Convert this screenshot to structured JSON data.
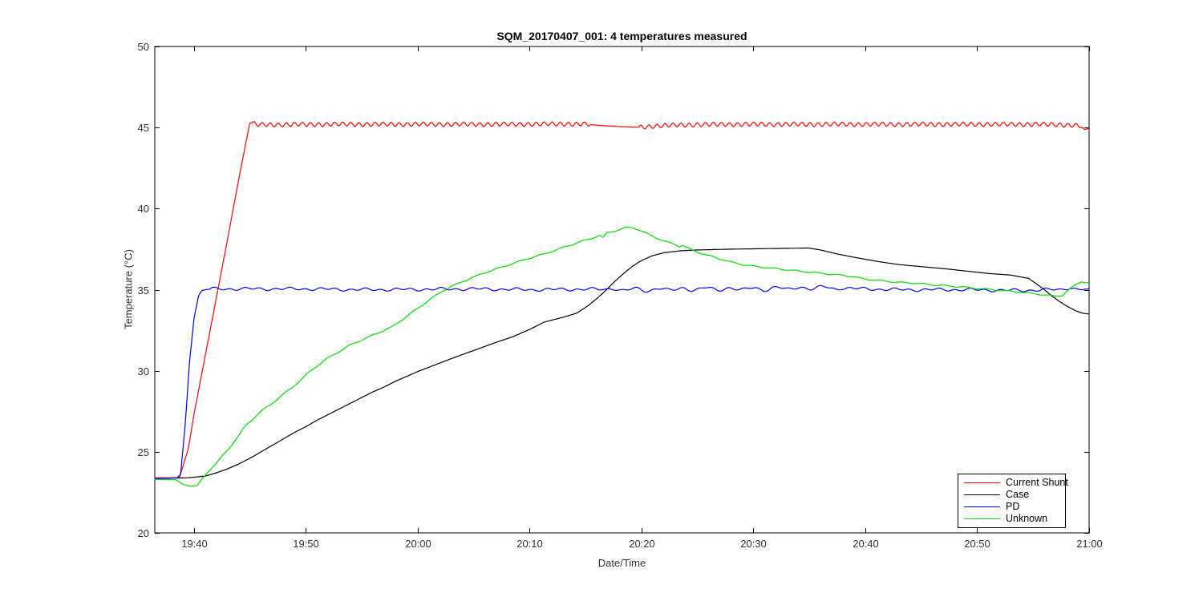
{
  "figure": {
    "background": "#ffffff"
  },
  "chart_data": {
    "type": "line",
    "title": "SQM_20170407_001: 4 temperatures measured",
    "xlabel": "Date/Time",
    "ylabel": "Temperature (°C)",
    "x_unit": "minutes relative to 19:40",
    "xlim_minutes": [
      -3.5,
      80
    ],
    "ylim": [
      20,
      50
    ],
    "grid": false,
    "axis_color": "#000000",
    "tick_label_color": "#333333",
    "x_ticks": [
      {
        "t": 0,
        "label": "19:40"
      },
      {
        "t": 10,
        "label": "19:50"
      },
      {
        "t": 20,
        "label": "20:00"
      },
      {
        "t": 30,
        "label": "20:10"
      },
      {
        "t": 40,
        "label": "20:20"
      },
      {
        "t": 50,
        "label": "20:30"
      },
      {
        "t": 60,
        "label": "20:40"
      },
      {
        "t": 70,
        "label": "20:50"
      },
      {
        "t": 80,
        "label": "21:00"
      }
    ],
    "y_ticks": [
      20,
      25,
      30,
      35,
      40,
      45,
      50
    ],
    "legend": {
      "position": "lower-right",
      "entries": [
        {
          "label": "Current Shunt",
          "color": "#ff0000"
        },
        {
          "label": "Case",
          "color": "#000000"
        },
        {
          "label": "PD",
          "color": "#0000ff"
        },
        {
          "label": "Unknown",
          "color": "#00dc00"
        }
      ]
    },
    "series": [
      {
        "name": "Current Shunt",
        "color": "#ff0000",
        "points": [
          [
            -3.5,
            23.4
          ],
          [
            -1.3,
            23.4
          ],
          [
            -0.5,
            25.2
          ],
          [
            0,
            27.3
          ],
          [
            1,
            30.9
          ],
          [
            2,
            34.5
          ],
          [
            3,
            38.1
          ],
          [
            4,
            41.8
          ],
          [
            5,
            45.32
          ],
          [
            5.6,
            45.18
          ],
          [
            8,
            45.18
          ],
          [
            12,
            45.2
          ],
          [
            16,
            45.2
          ],
          [
            20,
            45.2
          ],
          [
            24,
            45.2
          ],
          [
            28,
            45.2
          ],
          [
            32,
            45.22
          ],
          [
            34.5,
            45.22
          ],
          [
            35.4,
            45.18
          ],
          [
            36.5,
            45.12
          ],
          [
            38,
            45.06
          ],
          [
            39.6,
            45.02
          ],
          [
            40.5,
            45.06
          ],
          [
            41.5,
            45.1
          ],
          [
            43,
            45.15
          ],
          [
            45,
            45.18
          ],
          [
            48,
            45.2
          ],
          [
            52,
            45.2
          ],
          [
            56,
            45.2
          ],
          [
            60,
            45.2
          ],
          [
            64,
            45.2
          ],
          [
            68,
            45.2
          ],
          [
            72,
            45.2
          ],
          [
            75,
            45.2
          ],
          [
            77,
            45.18
          ],
          [
            78.5,
            45.15
          ],
          [
            79.2,
            45.1
          ],
          [
            79.6,
            44.88
          ],
          [
            80,
            44.95
          ]
        ],
        "ripples": [
          {
            "amplitude": 0.12,
            "period": 0.72,
            "from": 5.2,
            "to": 79.3,
            "phase": 0
          },
          {
            "amplitude": 0.02,
            "period": 3.7,
            "from": 5.2,
            "to": 79.3,
            "phase": 0.8
          }
        ],
        "ripple_mute": [
          [
            35.4,
            39.8
          ]
        ]
      },
      {
        "name": "Case",
        "color": "#000000",
        "points": [
          [
            -3.5,
            23.35
          ],
          [
            -0.5,
            23.4
          ],
          [
            1,
            23.5
          ],
          [
            2,
            23.7
          ],
          [
            3,
            23.95
          ],
          [
            4,
            24.25
          ],
          [
            5,
            24.6
          ],
          [
            6,
            25.0
          ],
          [
            7,
            25.4
          ],
          [
            8,
            25.8
          ],
          [
            9,
            26.2
          ],
          [
            10,
            26.55
          ],
          [
            11,
            26.95
          ],
          [
            12,
            27.3
          ],
          [
            13,
            27.65
          ],
          [
            14,
            28.0
          ],
          [
            15,
            28.35
          ],
          [
            16,
            28.7
          ],
          [
            17,
            29.0
          ],
          [
            18,
            29.35
          ],
          [
            19,
            29.65
          ],
          [
            20,
            29.95
          ],
          [
            21.5,
            30.35
          ],
          [
            23,
            30.75
          ],
          [
            25,
            31.25
          ],
          [
            27,
            31.75
          ],
          [
            28.5,
            32.1
          ],
          [
            30,
            32.55
          ],
          [
            31.3,
            33.0
          ],
          [
            33,
            33.3
          ],
          [
            34.2,
            33.55
          ],
          [
            35.2,
            34.0
          ],
          [
            36,
            34.45
          ],
          [
            36.8,
            34.95
          ],
          [
            37.6,
            35.5
          ],
          [
            38.4,
            36.0
          ],
          [
            39.2,
            36.45
          ],
          [
            40,
            36.8
          ],
          [
            41,
            37.1
          ],
          [
            42,
            37.28
          ],
          [
            43.5,
            37.4
          ],
          [
            45,
            37.45
          ],
          [
            48,
            37.5
          ],
          [
            51,
            37.53
          ],
          [
            54.9,
            37.57
          ],
          [
            56,
            37.45
          ],
          [
            57.5,
            37.2
          ],
          [
            59,
            37.0
          ],
          [
            61,
            36.75
          ],
          [
            63,
            36.55
          ],
          [
            65,
            36.42
          ],
          [
            67,
            36.3
          ],
          [
            69,
            36.15
          ],
          [
            71,
            36.0
          ],
          [
            73,
            35.9
          ],
          [
            74.6,
            35.7
          ],
          [
            75.3,
            35.35
          ],
          [
            76,
            35.0
          ],
          [
            76.7,
            34.6
          ],
          [
            77.4,
            34.25
          ],
          [
            78.1,
            33.95
          ],
          [
            78.8,
            33.7
          ],
          [
            79.4,
            33.55
          ],
          [
            80,
            33.5
          ]
        ],
        "ripples": [],
        "ripple_mute": []
      },
      {
        "name": "PD",
        "color": "#0000ff",
        "points": [
          [
            -3.5,
            23.35
          ],
          [
            -1.5,
            23.4
          ],
          [
            -1.2,
            23.6
          ],
          [
            -0.8,
            26.5
          ],
          [
            -0.4,
            30.5
          ],
          [
            0,
            33.2
          ],
          [
            0.4,
            34.6
          ],
          [
            0.7,
            34.95
          ],
          [
            1.5,
            35.05
          ],
          [
            5,
            35.05
          ],
          [
            10,
            35.05
          ],
          [
            15,
            35.0
          ],
          [
            20,
            35.02
          ],
          [
            25,
            35.05
          ],
          [
            30,
            35.0
          ],
          [
            35,
            35.03
          ],
          [
            40,
            35.0
          ],
          [
            45,
            35.05
          ],
          [
            50,
            35.05
          ],
          [
            54,
            35.1
          ],
          [
            57,
            35.12
          ],
          [
            60,
            35.05
          ],
          [
            63,
            35.0
          ],
          [
            66,
            35.0
          ],
          [
            69,
            35.0
          ],
          [
            72,
            34.97
          ],
          [
            74,
            34.95
          ],
          [
            76,
            35.0
          ],
          [
            77.5,
            35.0
          ],
          [
            78.3,
            35.15
          ],
          [
            79,
            35.0
          ],
          [
            80,
            35.05
          ]
        ],
        "ripples": [
          {
            "amplitude": 0.06,
            "period": 1.35,
            "from": 1.5,
            "to": 79.5,
            "phase": 0
          },
          {
            "amplitude": 0.05,
            "period": 3.4,
            "from": 1.5,
            "to": 79.5,
            "phase": 1.3
          },
          {
            "amplitude": 0.07,
            "period": 2.1,
            "from": 37,
            "to": 58,
            "phase": 0.5
          }
        ],
        "ripple_mute": []
      },
      {
        "name": "Unknown",
        "color": "#00dc00",
        "points": [
          [
            -3.5,
            23.3
          ],
          [
            -1.6,
            23.28
          ],
          [
            -1.0,
            23.0
          ],
          [
            -0.3,
            22.87
          ],
          [
            0.3,
            22.93
          ],
          [
            0.8,
            23.4
          ],
          [
            1.2,
            23.7
          ],
          [
            2,
            24.3
          ],
          [
            3,
            25.1
          ],
          [
            4,
            26.0
          ],
          [
            4.6,
            26.6
          ],
          [
            6,
            27.5
          ],
          [
            7,
            28.0
          ],
          [
            8,
            28.55
          ],
          [
            9,
            29.1
          ],
          [
            10.6,
            30.1
          ],
          [
            12,
            30.8
          ],
          [
            13,
            31.2
          ],
          [
            14,
            31.6
          ],
          [
            15,
            31.9
          ],
          [
            16,
            32.2
          ],
          [
            17.7,
            32.7
          ],
          [
            19,
            33.35
          ],
          [
            20,
            33.85
          ],
          [
            21,
            34.35
          ],
          [
            22.4,
            35.0
          ],
          [
            24,
            35.5
          ],
          [
            26,
            36.05
          ],
          [
            28,
            36.5
          ],
          [
            30,
            36.95
          ],
          [
            31.3,
            37.2
          ],
          [
            33,
            37.6
          ],
          [
            34.5,
            37.95
          ],
          [
            35.5,
            38.15
          ],
          [
            36.2,
            38.35
          ],
          [
            36.6,
            38.2
          ],
          [
            36.9,
            38.5
          ],
          [
            38,
            38.7
          ],
          [
            38.7,
            38.85
          ],
          [
            39.4,
            38.8
          ],
          [
            40.2,
            38.55
          ],
          [
            41,
            38.3
          ],
          [
            42,
            38.0
          ],
          [
            43,
            37.8
          ],
          [
            43.4,
            37.65
          ],
          [
            43.6,
            37.75
          ],
          [
            44.5,
            37.45
          ],
          [
            45.5,
            37.2
          ],
          [
            46.5,
            37.0
          ],
          [
            48,
            36.7
          ],
          [
            49,
            36.55
          ],
          [
            50,
            36.45
          ],
          [
            52,
            36.3
          ],
          [
            54,
            36.15
          ],
          [
            55.5,
            36.05
          ],
          [
            57,
            35.95
          ],
          [
            58.5,
            35.85
          ],
          [
            60,
            35.65
          ],
          [
            61.5,
            35.55
          ],
          [
            63,
            35.45
          ],
          [
            64.5,
            35.4
          ],
          [
            66,
            35.3
          ],
          [
            68,
            35.2
          ],
          [
            70,
            35.08
          ],
          [
            71.5,
            35.0
          ],
          [
            73,
            34.9
          ],
          [
            74.5,
            34.8
          ],
          [
            76,
            34.68
          ],
          [
            77,
            34.6
          ],
          [
            77.6,
            34.65
          ],
          [
            78.2,
            35.0
          ],
          [
            78.8,
            35.3
          ],
          [
            79.3,
            35.48
          ],
          [
            79.7,
            35.42
          ],
          [
            80,
            35.45
          ]
        ],
        "ripples": [
          {
            "amplitude": 0.035,
            "period": 1.9,
            "from": 2,
            "to": 79,
            "phase": 0
          }
        ],
        "ripple_mute": []
      }
    ]
  }
}
